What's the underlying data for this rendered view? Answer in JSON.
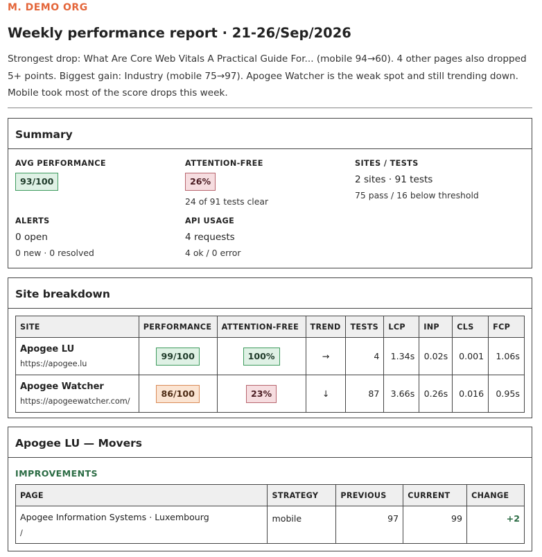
{
  "org_name": "M. DEMO ORG",
  "report_title": "Weekly performance report · 21-26/Sep/2026",
  "intro": "Strongest drop: What Are Core Web Vitals A Practical Guide For... (mobile 94→60). 4 other pages also dropped 5+ points. Biggest gain: Industry (mobile 75→97). Apogee Watcher is the weak spot and still trending down. Mobile took most of the score drops this week.",
  "summary": {
    "heading": "Summary",
    "avg_performance": {
      "label": "AVG PERFORMANCE",
      "value": "93/100"
    },
    "attention_free": {
      "label": "ATTENTION-FREE",
      "value": "26%",
      "sub": "24 of 91 tests clear"
    },
    "sites_tests": {
      "label": "SITES / TESTS",
      "value": "2 sites · 91 tests",
      "sub": "75 pass / 16 below threshold"
    },
    "alerts": {
      "label": "ALERTS",
      "value": "0 open",
      "sub": "0 new · 0 resolved"
    },
    "api_usage": {
      "label": "API USAGE",
      "value": "4 requests",
      "sub": "4 ok / 0 error"
    }
  },
  "breakdown": {
    "heading": "Site breakdown",
    "columns": [
      "SITE",
      "PERFORMANCE",
      "ATTENTION-FREE",
      "TREND",
      "TESTS",
      "LCP",
      "INP",
      "CLS",
      "FCP"
    ],
    "rows": [
      {
        "name": "Apogee LU",
        "url": "https://apogee.lu",
        "performance": "99/100",
        "attention": "100%",
        "trend": "→",
        "tests": "4",
        "lcp": "1.34s",
        "inp": "0.02s",
        "cls": "0.001",
        "fcp": "1.06s"
      },
      {
        "name": "Apogee Watcher",
        "url": "https://apogeewatcher.com/",
        "performance": "86/100",
        "attention": "23%",
        "trend": "↓",
        "tests": "87",
        "lcp": "3.66s",
        "inp": "0.26s",
        "cls": "0.016",
        "fcp": "0.95s"
      }
    ]
  },
  "movers": {
    "heading": "Apogee LU — Movers",
    "section": "IMPROVEMENTS",
    "columns": [
      "PAGE",
      "STRATEGY",
      "PREVIOUS",
      "CURRENT",
      "CHANGE"
    ],
    "rows": [
      {
        "page": "Apogee Information Systems · Luxembourg",
        "path": "/",
        "strategy": "mobile",
        "previous": "97",
        "current": "99",
        "change": "+2"
      }
    ]
  },
  "colors": {
    "accent": "#e4663a",
    "good": "#3d9a5d",
    "bad": "#b8656e",
    "warn": "#d98a57"
  }
}
